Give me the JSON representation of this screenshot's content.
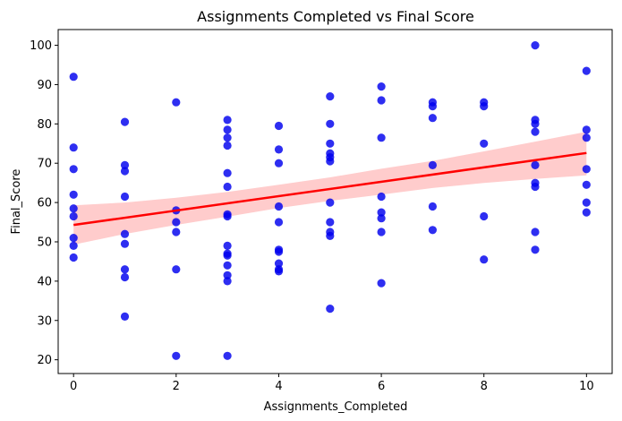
{
  "chart_data": {
    "type": "scatter",
    "title": "Assignments Completed vs Final Score",
    "xlabel": "Assignments_Completed",
    "ylabel": "Final_Score",
    "xlim": [
      -0.3,
      10.5
    ],
    "ylim": [
      16.5,
      104
    ],
    "xticks": [
      0,
      2,
      4,
      6,
      8,
      10
    ],
    "yticks": [
      20,
      30,
      40,
      50,
      60,
      70,
      80,
      90,
      100
    ],
    "grid": false,
    "point_color": "#0000ee",
    "line_color": "#ff0000",
    "band_color": "#ffcccc",
    "points": [
      {
        "x": 0,
        "y": 92
      },
      {
        "x": 0,
        "y": 74
      },
      {
        "x": 0,
        "y": 68.5
      },
      {
        "x": 0,
        "y": 62
      },
      {
        "x": 0,
        "y": 58.5
      },
      {
        "x": 0,
        "y": 56.5
      },
      {
        "x": 0,
        "y": 51
      },
      {
        "x": 0,
        "y": 49
      },
      {
        "x": 0,
        "y": 46
      },
      {
        "x": 1,
        "y": 80.5
      },
      {
        "x": 1,
        "y": 69.5
      },
      {
        "x": 1,
        "y": 68
      },
      {
        "x": 1,
        "y": 61.5
      },
      {
        "x": 1,
        "y": 52
      },
      {
        "x": 1,
        "y": 49.5
      },
      {
        "x": 1,
        "y": 43
      },
      {
        "x": 1,
        "y": 41
      },
      {
        "x": 1,
        "y": 31
      },
      {
        "x": 2,
        "y": 85.5
      },
      {
        "x": 2,
        "y": 58
      },
      {
        "x": 2,
        "y": 55
      },
      {
        "x": 2,
        "y": 52.5
      },
      {
        "x": 2,
        "y": 43
      },
      {
        "x": 2,
        "y": 21
      },
      {
        "x": 3,
        "y": 81
      },
      {
        "x": 3,
        "y": 78.5
      },
      {
        "x": 3,
        "y": 76.5
      },
      {
        "x": 3,
        "y": 74.5
      },
      {
        "x": 3,
        "y": 67.5
      },
      {
        "x": 3,
        "y": 64
      },
      {
        "x": 3,
        "y": 57
      },
      {
        "x": 3,
        "y": 56.5
      },
      {
        "x": 3,
        "y": 49
      },
      {
        "x": 3,
        "y": 47
      },
      {
        "x": 3,
        "y": 46.5
      },
      {
        "x": 3,
        "y": 44
      },
      {
        "x": 3,
        "y": 41.5
      },
      {
        "x": 3,
        "y": 40
      },
      {
        "x": 3,
        "y": 21
      },
      {
        "x": 4,
        "y": 79.5
      },
      {
        "x": 4,
        "y": 73.5
      },
      {
        "x": 4,
        "y": 70
      },
      {
        "x": 4,
        "y": 59
      },
      {
        "x": 4,
        "y": 55
      },
      {
        "x": 4,
        "y": 48
      },
      {
        "x": 4,
        "y": 47.5
      },
      {
        "x": 4,
        "y": 44.5
      },
      {
        "x": 4,
        "y": 43
      },
      {
        "x": 4,
        "y": 42.5
      },
      {
        "x": 5,
        "y": 87
      },
      {
        "x": 5,
        "y": 80
      },
      {
        "x": 5,
        "y": 75
      },
      {
        "x": 5,
        "y": 72.5
      },
      {
        "x": 5,
        "y": 71.5
      },
      {
        "x": 5,
        "y": 70.5
      },
      {
        "x": 5,
        "y": 60
      },
      {
        "x": 5,
        "y": 55
      },
      {
        "x": 5,
        "y": 52.5
      },
      {
        "x": 5,
        "y": 51.5
      },
      {
        "x": 5,
        "y": 33
      },
      {
        "x": 6,
        "y": 89.5
      },
      {
        "x": 6,
        "y": 86
      },
      {
        "x": 6,
        "y": 76.5
      },
      {
        "x": 6,
        "y": 61.5
      },
      {
        "x": 6,
        "y": 57.5
      },
      {
        "x": 6,
        "y": 56
      },
      {
        "x": 6,
        "y": 52.5
      },
      {
        "x": 6,
        "y": 39.5
      },
      {
        "x": 7,
        "y": 85.5
      },
      {
        "x": 7,
        "y": 84.5
      },
      {
        "x": 7,
        "y": 81.5
      },
      {
        "x": 7,
        "y": 69.5
      },
      {
        "x": 7,
        "y": 59
      },
      {
        "x": 7,
        "y": 53
      },
      {
        "x": 8,
        "y": 85.5
      },
      {
        "x": 8,
        "y": 84.5
      },
      {
        "x": 8,
        "y": 75
      },
      {
        "x": 8,
        "y": 56.5
      },
      {
        "x": 8,
        "y": 45.5
      },
      {
        "x": 9,
        "y": 100
      },
      {
        "x": 9,
        "y": 81
      },
      {
        "x": 9,
        "y": 80
      },
      {
        "x": 9,
        "y": 78
      },
      {
        "x": 9,
        "y": 69.5
      },
      {
        "x": 9,
        "y": 65
      },
      {
        "x": 9,
        "y": 64
      },
      {
        "x": 9,
        "y": 52.5
      },
      {
        "x": 9,
        "y": 48
      },
      {
        "x": 10,
        "y": 93.5
      },
      {
        "x": 10,
        "y": 78.5
      },
      {
        "x": 10,
        "y": 76.5
      },
      {
        "x": 10,
        "y": 68.5
      },
      {
        "x": 10,
        "y": 64.5
      },
      {
        "x": 10,
        "y": 60
      },
      {
        "x": 10,
        "y": 57.5
      }
    ],
    "regression": {
      "line": [
        {
          "x": 0,
          "y": 54.3
        },
        {
          "x": 10,
          "y": 72.6
        }
      ],
      "ci_band": [
        {
          "x": 0,
          "lower": 49.3,
          "upper": 59.3
        },
        {
          "x": 1,
          "lower": 52.0,
          "upper": 60.0
        },
        {
          "x": 2,
          "lower": 54.3,
          "upper": 61.2
        },
        {
          "x": 3,
          "lower": 56.4,
          "upper": 62.7
        },
        {
          "x": 4,
          "lower": 58.6,
          "upper": 64.5
        },
        {
          "x": 5,
          "lower": 60.4,
          "upper": 66.4
        },
        {
          "x": 6,
          "lower": 62.0,
          "upper": 68.6
        },
        {
          "x": 7,
          "lower": 63.7,
          "upper": 70.6
        },
        {
          "x": 8,
          "lower": 65.0,
          "upper": 73.0
        },
        {
          "x": 9,
          "lower": 66.0,
          "upper": 75.5
        },
        {
          "x": 10,
          "lower": 66.9,
          "upper": 78.0
        }
      ]
    }
  }
}
